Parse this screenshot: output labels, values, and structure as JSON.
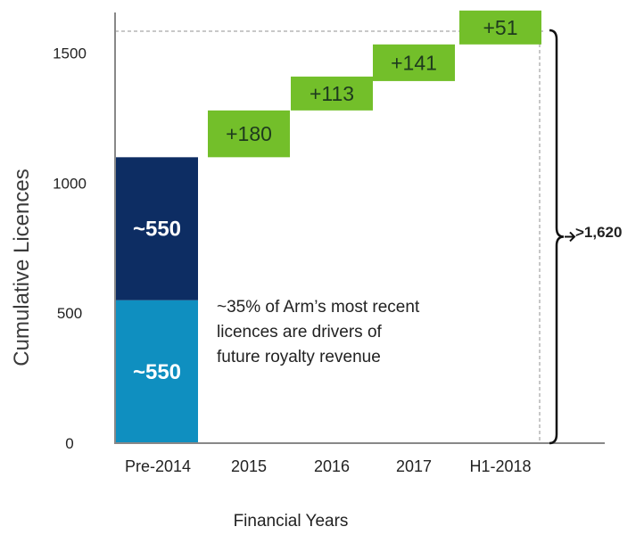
{
  "chart_data": {
    "type": "bar",
    "ylabel": "Cumulative Licences",
    "xlabel": "Financial Years",
    "ylim": [
      0,
      1650
    ],
    "yticks": [
      0,
      500,
      1000,
      1500
    ],
    "categories": [
      "Pre-2014",
      "2015",
      "2016",
      "2017",
      "H1-2018"
    ],
    "base_segments": [
      {
        "label": "~550",
        "value": 550,
        "color": "#0f8fc0"
      },
      {
        "label": "~550",
        "value": 550,
        "color": "#0d2d63"
      }
    ],
    "increments": [
      {
        "category": "2015",
        "value": 180,
        "label": "+180"
      },
      {
        "category": "2016",
        "value": 113,
        "label": "+113"
      },
      {
        "category": "2017",
        "value": 141,
        "label": "+141"
      },
      {
        "category": "H1-2018",
        "value": 51,
        "label": "+51"
      }
    ],
    "increment_color": "#73bf2a",
    "annotation_lines": [
      "~35% of Arm’s most recent",
      "licences are drivers of",
      "future royalty revenue"
    ],
    "total_label": ">1,620"
  }
}
